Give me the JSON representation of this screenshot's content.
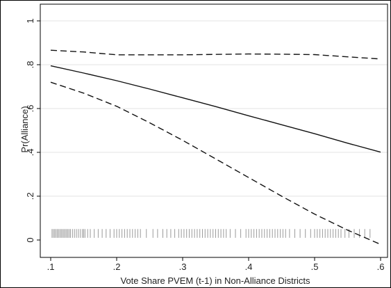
{
  "chart_data": {
    "type": "line",
    "title": "",
    "xlabel": "Vote Share PVEM (t-1) in Non-Alliance Districts",
    "ylabel": "Pr(Alliance)",
    "xlim": [
      0.1,
      0.6
    ],
    "ylim": [
      0,
      1
    ],
    "x_ticks": [
      0.1,
      0.2,
      0.3,
      0.4,
      0.5,
      0.6
    ],
    "x_tick_labels": [
      ".1",
      ".2",
      ".3",
      ".4",
      ".5",
      ".6"
    ],
    "y_ticks": [
      0,
      0.2,
      0.4,
      0.6,
      0.8,
      1
    ],
    "y_tick_labels": [
      "0",
      ".2",
      ".4",
      ".6",
      ".8",
      "1"
    ],
    "grid": "horizontal",
    "legend": "none",
    "series": [
      {
        "style": "solid",
        "x": [
          0.1,
          0.15,
          0.2,
          0.25,
          0.3,
          0.35,
          0.4,
          0.45,
          0.5,
          0.55,
          0.6
        ],
        "y": [
          0.795,
          0.762,
          0.727,
          0.689,
          0.649,
          0.609,
          0.567,
          0.526,
          0.485,
          0.442,
          0.401
        ]
      },
      {
        "style": "dashed",
        "x": [
          0.1,
          0.15,
          0.2,
          0.25,
          0.3,
          0.35,
          0.4,
          0.45,
          0.5,
          0.55,
          0.6
        ],
        "y": [
          0.866,
          0.858,
          0.845,
          0.845,
          0.845,
          0.847,
          0.849,
          0.848,
          0.846,
          0.836,
          0.826
        ]
      },
      {
        "style": "dashed",
        "x": [
          0.1,
          0.15,
          0.2,
          0.25,
          0.3,
          0.35,
          0.4,
          0.45,
          0.5,
          0.55,
          0.6
        ],
        "y": [
          0.72,
          0.67,
          0.61,
          0.535,
          0.455,
          0.37,
          0.285,
          0.2,
          0.118,
          0.045,
          -0.02
        ]
      }
    ],
    "rug_color": "#9a9a9a",
    "rug": [
      0.102,
      0.104,
      0.106,
      0.108,
      0.11,
      0.112,
      0.114,
      0.116,
      0.118,
      0.12,
      0.122,
      0.124,
      0.126,
      0.128,
      0.13,
      0.133,
      0.136,
      0.139,
      0.142,
      0.145,
      0.148,
      0.15,
      0.152,
      0.156,
      0.16,
      0.166,
      0.172,
      0.178,
      0.184,
      0.19,
      0.196,
      0.2,
      0.204,
      0.208,
      0.212,
      0.216,
      0.22,
      0.224,
      0.228,
      0.232,
      0.236,
      0.245,
      0.255,
      0.262,
      0.27,
      0.276,
      0.282,
      0.288,
      0.294,
      0.298,
      0.302,
      0.306,
      0.31,
      0.314,
      0.318,
      0.322,
      0.326,
      0.33,
      0.334,
      0.338,
      0.342,
      0.346,
      0.35,
      0.354,
      0.358,
      0.362,
      0.366,
      0.372,
      0.38,
      0.388,
      0.396,
      0.4,
      0.404,
      0.408,
      0.412,
      0.416,
      0.42,
      0.424,
      0.428,
      0.432,
      0.436,
      0.44,
      0.444,
      0.448,
      0.452,
      0.456,
      0.462,
      0.47,
      0.478,
      0.486,
      0.494,
      0.5,
      0.504,
      0.508,
      0.512,
      0.516,
      0.52,
      0.524,
      0.528,
      0.532,
      0.536,
      0.54,
      0.546,
      0.552,
      0.56,
      0.568,
      0.576,
      0.584
    ]
  }
}
